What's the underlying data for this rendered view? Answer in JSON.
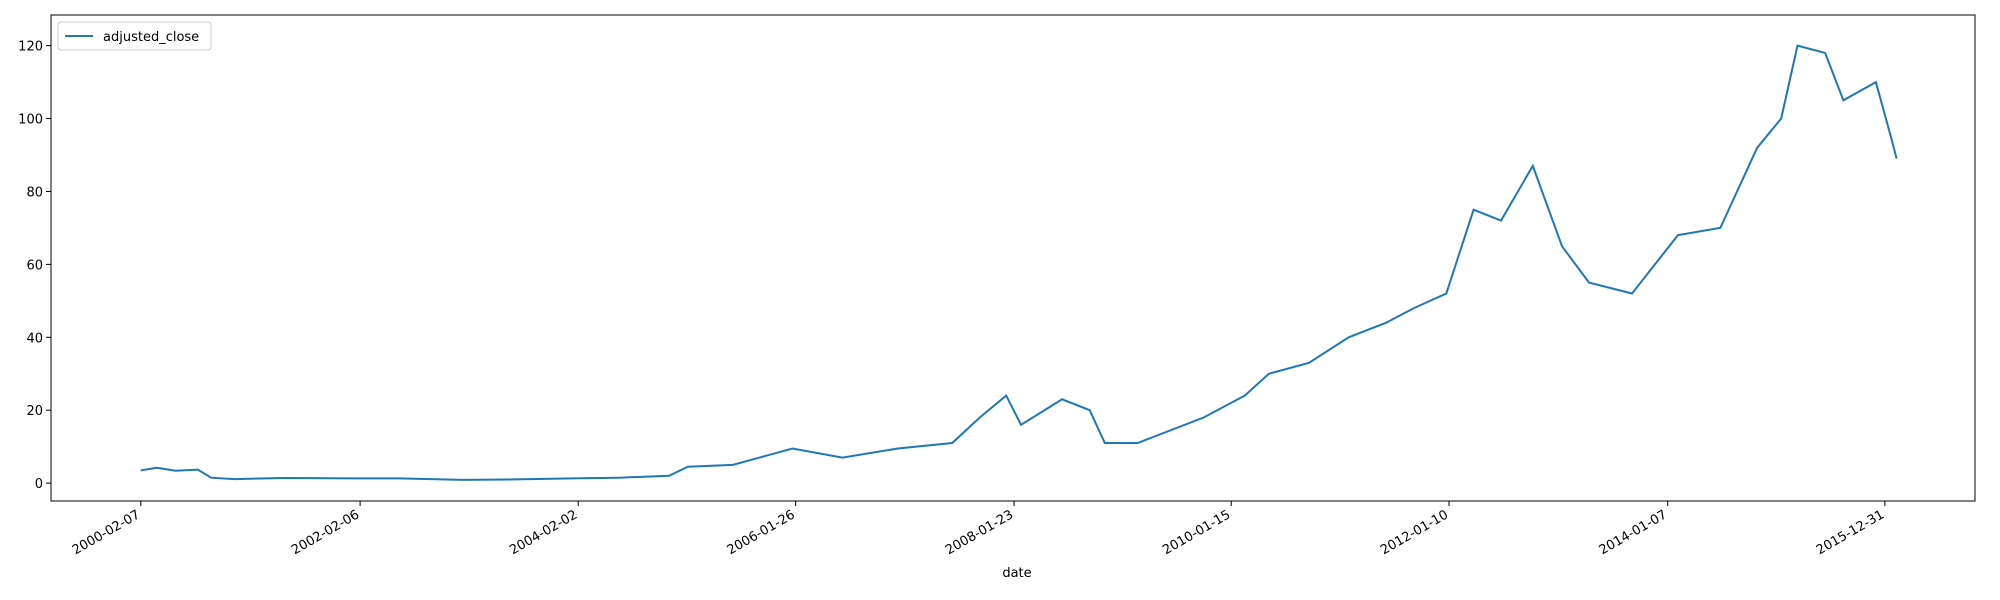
{
  "chart_data": {
    "type": "line",
    "x_label": "date",
    "x": [
      "2000-02-07",
      "2000-04-01",
      "2000-06-01",
      "2000-08-15",
      "2000-09-28",
      "2000-12-15",
      "2001-06-01",
      "2002-01-15",
      "2002-06-15",
      "2003-01-15",
      "2003-06-15",
      "2004-01-15",
      "2004-06-15",
      "2004-12-01",
      "2005-02-01",
      "2005-07-01",
      "2006-01-15",
      "2006-07-01",
      "2007-01-01",
      "2007-07-01",
      "2007-10-01",
      "2007-12-28",
      "2008-02-15",
      "2008-07-01",
      "2008-10-01",
      "2008-11-20",
      "2009-03-10",
      "2009-10-15",
      "2010-03-01",
      "2010-05-20",
      "2010-10-01",
      "2011-02-10",
      "2011-06-15",
      "2011-09-15",
      "2012-01-01",
      "2012-04-01",
      "2012-07-01",
      "2012-10-15",
      "2013-01-20",
      "2013-04-20",
      "2013-09-10",
      "2014-02-10",
      "2014-07-01",
      "2014-11-01",
      "2015-01-20",
      "2015-03-15",
      "2015-06-15",
      "2015-08-15",
      "2015-12-01",
      "2016-01-20",
      "2016-02-08"
    ],
    "series": [
      {
        "name": "adjusted_close",
        "color": "#1f77b4",
        "values": [
          3.5,
          4.2,
          3.4,
          3.7,
          1.5,
          1.1,
          1.4,
          1.3,
          1.3,
          0.9,
          1.0,
          1.3,
          1.5,
          2.0,
          4.5,
          5,
          9.5,
          7,
          9.5,
          11,
          18,
          24,
          16,
          23,
          20,
          11,
          11,
          18,
          24,
          30,
          33,
          40,
          44,
          48,
          52,
          75,
          72,
          87,
          65,
          55,
          52,
          68,
          70,
          92,
          100,
          120,
          118,
          105,
          110,
          95,
          89
        ]
      }
    ],
    "xlim": [
      "1999-04-14",
      "2016-10-26"
    ],
    "xticks": [
      "2000-02-07",
      "2002-02-06",
      "2004-02-02",
      "2006-01-26",
      "2008-01-23",
      "2010-01-15",
      "2012-01-10",
      "2014-01-07",
      "2015-12-31"
    ],
    "ylim": [
      -4.9,
      128.4
    ],
    "yticks": [
      0,
      20,
      40,
      60,
      80,
      100,
      120
    ],
    "legend": "upper left"
  }
}
